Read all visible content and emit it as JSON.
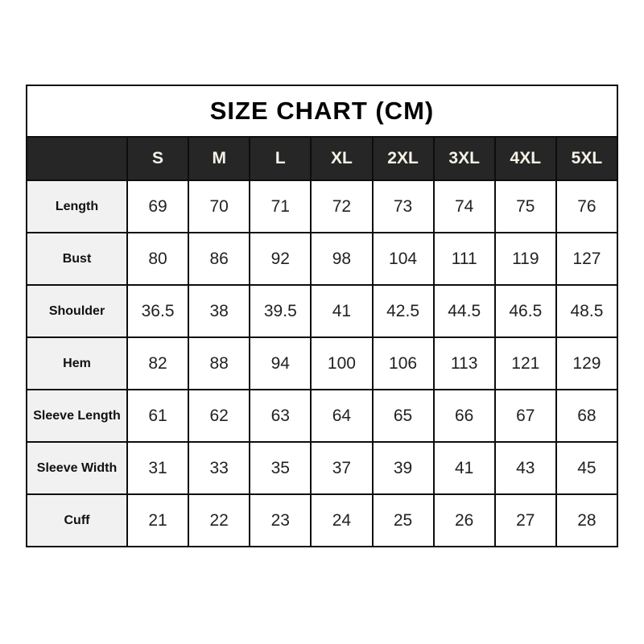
{
  "chart_data": {
    "type": "table",
    "title": "SIZE CHART (CM)",
    "corner_label": "",
    "columns": [
      "S",
      "M",
      "L",
      "XL",
      "2XL",
      "3XL",
      "4XL",
      "5XL"
    ],
    "rows": [
      {
        "label": "Length",
        "values": [
          "69",
          "70",
          "71",
          "72",
          "73",
          "74",
          "75",
          "76"
        ]
      },
      {
        "label": "Bust",
        "values": [
          "80",
          "86",
          "92",
          "98",
          "104",
          "111",
          "119",
          "127"
        ]
      },
      {
        "label": "Shoulder",
        "values": [
          "36.5",
          "38",
          "39.5",
          "41",
          "42.5",
          "44.5",
          "46.5",
          "48.5"
        ]
      },
      {
        "label": "Hem",
        "values": [
          "82",
          "88",
          "94",
          "100",
          "106",
          "113",
          "121",
          "129"
        ]
      },
      {
        "label": "Sleeve Length",
        "values": [
          "61",
          "62",
          "63",
          "64",
          "65",
          "66",
          "67",
          "68"
        ]
      },
      {
        "label": "Sleeve Width",
        "values": [
          "31",
          "33",
          "35",
          "37",
          "39",
          "41",
          "43",
          "45"
        ]
      },
      {
        "label": "Cuff",
        "values": [
          "21",
          "22",
          "23",
          "24",
          "25",
          "26",
          "27",
          "28"
        ]
      }
    ]
  },
  "colors": {
    "header_bg": "#262626",
    "header_text": "#f6f2e7",
    "label_bg": "#f1f1f1",
    "label_text": "#111111",
    "value_text": "#222222",
    "title_text": "#000000",
    "border": "#0d0d0d"
  }
}
